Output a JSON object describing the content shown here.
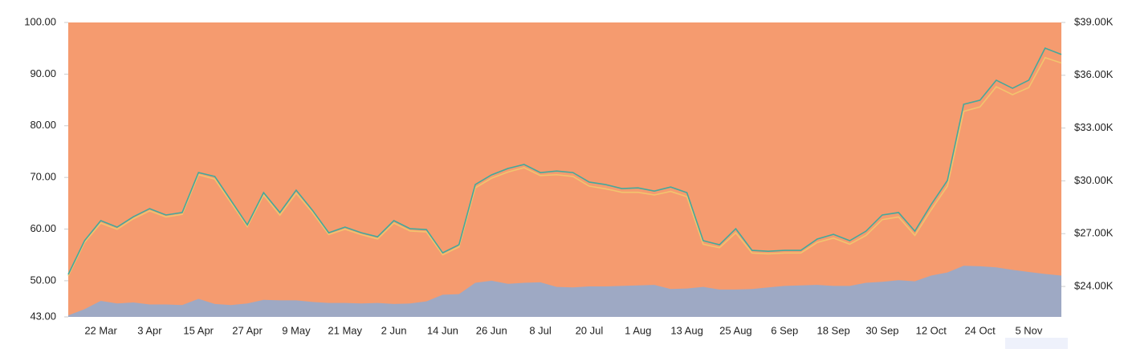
{
  "chart_data": {
    "type": "line",
    "categories": [
      null,
      null,
      "22 Mar",
      null,
      null,
      "3 Apr",
      null,
      null,
      "15 Apr",
      null,
      null,
      "27 Apr",
      null,
      null,
      "9 May",
      null,
      null,
      "21 May",
      null,
      null,
      "2 Jun",
      null,
      null,
      "14 Jun",
      null,
      null,
      "26 Jun",
      null,
      null,
      "8 Jul",
      null,
      null,
      "20 Jul",
      null,
      null,
      "1 Aug",
      null,
      null,
      "13 Aug",
      null,
      null,
      "25 Aug",
      null,
      null,
      "6 Sep",
      null,
      null,
      "18 Sep",
      null,
      null,
      "30 Sep",
      null,
      null,
      "12 Oct",
      null,
      null,
      "24 Oct",
      null,
      null,
      "5 Nov",
      null,
      null
    ],
    "series": [
      {
        "type": "area",
        "color": "#f59b6f",
        "values": [
          100,
          100,
          100,
          100,
          100,
          100,
          100,
          100,
          100,
          100,
          100,
          100,
          100,
          100,
          100,
          100,
          100,
          100,
          100,
          100,
          100,
          100,
          100,
          100,
          100,
          100,
          100,
          100,
          100,
          100,
          100,
          100,
          100,
          100,
          100,
          100,
          100,
          100,
          100,
          100,
          100,
          100,
          100,
          100,
          100,
          100,
          100,
          100,
          100,
          100,
          100,
          100,
          100,
          100,
          100,
          100,
          100,
          100,
          100,
          100,
          100,
          100
        ]
      },
      {
        "type": "area",
        "color": "#9ea9c4",
        "values": [
          43.3,
          44.5,
          46.1,
          45.6,
          45.8,
          45.4,
          45.4,
          45.3,
          46.5,
          45.5,
          45.3,
          45.6,
          46.3,
          46.2,
          46.2,
          45.9,
          45.7,
          45.7,
          45.6,
          45.7,
          45.5,
          45.6,
          46.0,
          47.3,
          47.4,
          49.6,
          50.0,
          49.4,
          49.6,
          49.7,
          48.8,
          48.7,
          48.9,
          48.9,
          49.0,
          49.1,
          49.2,
          48.4,
          48.5,
          48.8,
          48.3,
          48.3,
          48.4,
          48.7,
          49.0,
          49.1,
          49.2,
          49.0,
          49.0,
          49.6,
          49.8,
          50.1,
          49.9,
          51.0,
          51.6,
          52.9,
          52.8,
          52.6,
          52.1,
          51.7,
          51.3,
          51.0
        ]
      },
      {
        "type": "line",
        "axis": "y2",
        "color": "#f2c46e",
        "values": [
          24.6,
          26.5,
          27.6,
          27.25,
          27.85,
          28.3,
          27.95,
          28.1,
          30.35,
          30.1,
          28.75,
          27.4,
          29.2,
          28.05,
          29.3,
          28.2,
          26.95,
          27.25,
          26.95,
          26.7,
          27.6,
          27.15,
          27.1,
          25.8,
          26.25,
          29.6,
          30.15,
          30.5,
          30.75,
          30.3,
          30.35,
          30.25,
          29.7,
          29.55,
          29.35,
          29.35,
          29.2,
          29.4,
          29.1,
          26.4,
          26.2,
          27.05,
          25.9,
          25.85,
          25.9,
          25.9,
          26.5,
          26.75,
          26.4,
          26.9,
          27.8,
          27.95,
          26.9,
          28.35,
          29.7,
          33.95,
          34.2,
          35.35,
          34.9,
          35.3,
          37.0,
          36.7
        ]
      },
      {
        "type": "line",
        "axis": "y2",
        "color": "#45a89c",
        "values": [
          24.68,
          26.6,
          27.74,
          27.37,
          27.96,
          28.42,
          28.06,
          28.2,
          30.47,
          30.25,
          28.88,
          27.5,
          29.33,
          28.2,
          29.47,
          28.33,
          27.05,
          27.37,
          27.05,
          26.82,
          27.74,
          27.28,
          27.23,
          25.91,
          26.37,
          29.79,
          30.34,
          30.7,
          30.93,
          30.47,
          30.56,
          30.47,
          29.93,
          29.79,
          29.56,
          29.6,
          29.42,
          29.65,
          29.33,
          26.6,
          26.37,
          27.28,
          26.05,
          26.0,
          26.05,
          26.05,
          26.69,
          26.96,
          26.6,
          27.14,
          28.06,
          28.2,
          27.14,
          28.65,
          30.02,
          34.35,
          34.58,
          35.72,
          35.26,
          35.72,
          37.54,
          37.18
        ]
      }
    ],
    "ylim": [
      43,
      100
    ],
    "yticks": [
      {
        "value": 43,
        "label": "43.00"
      },
      {
        "value": 50,
        "label": "50.00"
      },
      {
        "value": 60,
        "label": "60.00"
      },
      {
        "value": 70,
        "label": "70.00"
      },
      {
        "value": 80,
        "label": "80.00"
      },
      {
        "value": 90,
        "label": "90.00"
      },
      {
        "value": 100,
        "label": "100.00"
      }
    ],
    "y2lim": [
      22.27,
      39
    ],
    "y2ticks": [
      {
        "value": 24,
        "label": "$24.00K"
      },
      {
        "value": 27,
        "label": "$27.00K"
      },
      {
        "value": 30,
        "label": "$30.00K"
      },
      {
        "value": 33,
        "label": "$33.00K"
      },
      {
        "value": 36,
        "label": "$36.00K"
      },
      {
        "value": 39,
        "label": "$39.00K"
      }
    ]
  }
}
